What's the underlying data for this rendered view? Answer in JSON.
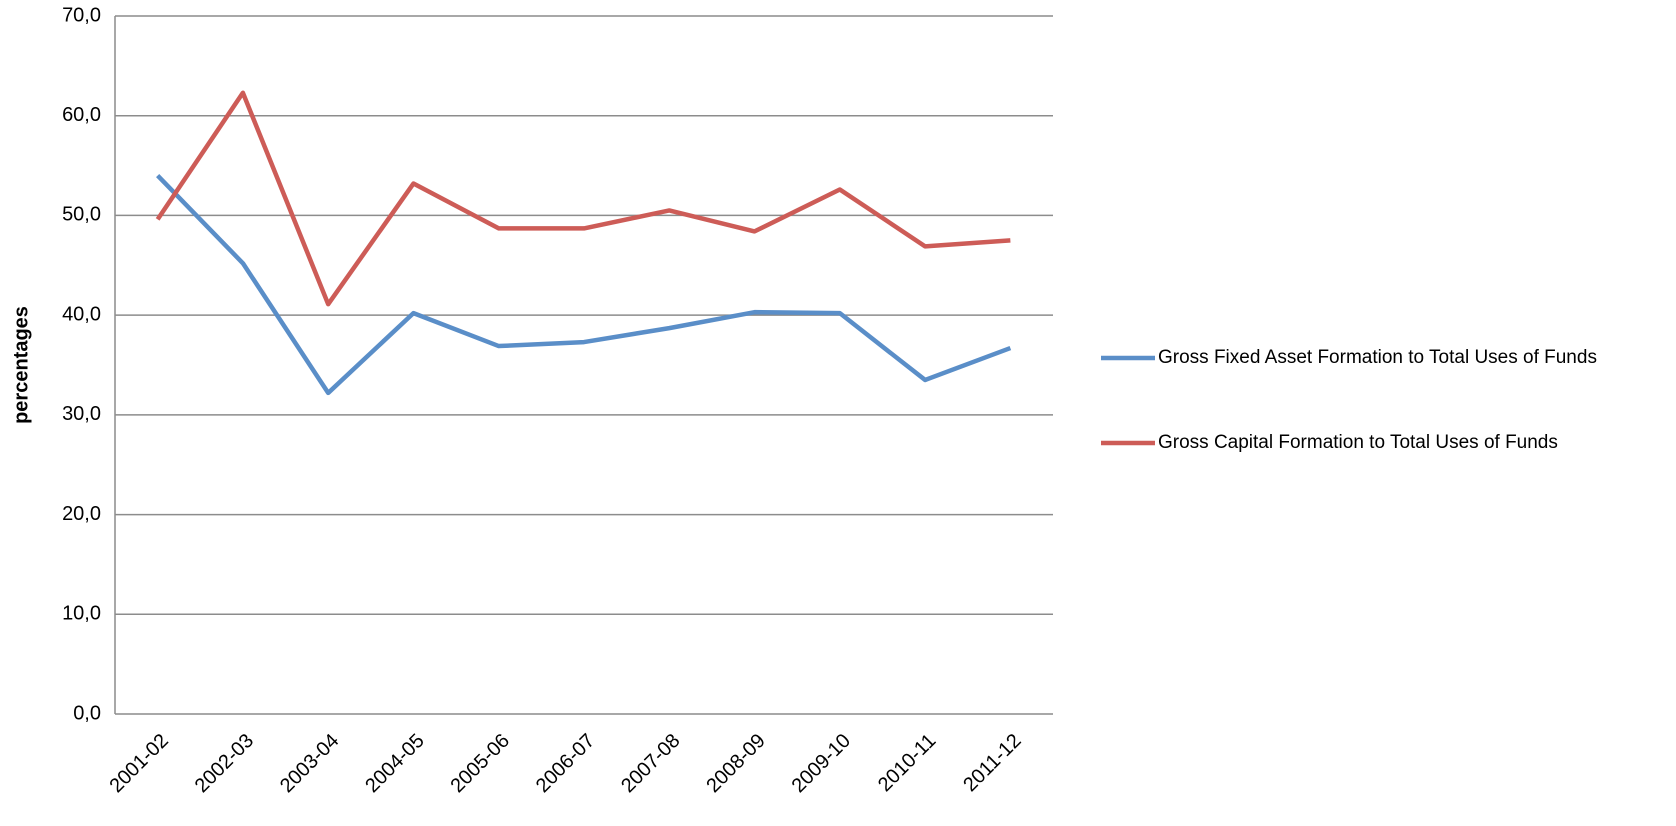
{
  "chart_data": {
    "type": "line",
    "y_label": "percentages",
    "categories": [
      "2001-02",
      "2002-03",
      "2003-04",
      "2004-05",
      "2005-06",
      "2006-07",
      "2007-08",
      "2008-09",
      "2009-10",
      "2010-11",
      "2011-12"
    ],
    "series": [
      {
        "name": "Gross Fixed Asset Formation to Total Uses of Funds",
        "color": "#5a8ec8",
        "values": [
          54.0,
          45.2,
          32.2,
          40.2,
          36.9,
          37.3,
          38.7,
          40.3,
          40.2,
          33.5,
          36.7
        ]
      },
      {
        "name": "Gross Capital Formation to Total Uses of Funds",
        "color": "#cd5c57",
        "values": [
          49.6,
          62.3,
          41.1,
          53.2,
          48.7,
          48.7,
          50.5,
          48.4,
          52.6,
          46.9,
          47.5
        ]
      }
    ],
    "ylim": [
      0,
      70
    ],
    "yticks": [
      {
        "value": 0,
        "label": "0,0"
      },
      {
        "value": 10,
        "label": "10,0"
      },
      {
        "value": 20,
        "label": "20,0"
      },
      {
        "value": 30,
        "label": "30,0"
      },
      {
        "value": 40,
        "label": "40,0"
      },
      {
        "value": 50,
        "label": "50,0"
      },
      {
        "value": 60,
        "label": "60,0"
      },
      {
        "value": 70,
        "label": "70,0"
      }
    ],
    "grid": true,
    "legend": "right"
  }
}
